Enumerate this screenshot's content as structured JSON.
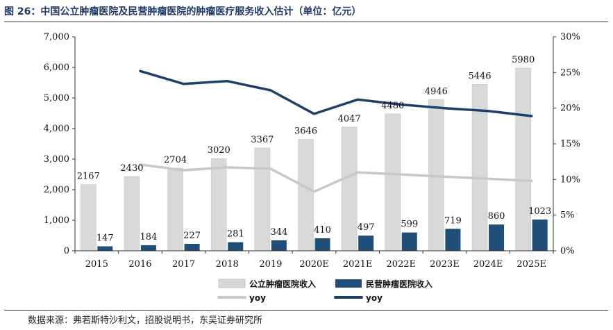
{
  "title": "图 26：中国公立肿瘤医院及民营肿瘤医院的肿瘤医疗服务收入估计（单位：亿元）",
  "source": "数据来源：弗若斯特沙利文，招股说明书，东吴证券研究所",
  "chart_data": {
    "type": "bar",
    "categories": [
      "2015",
      "2016",
      "2017",
      "2018",
      "2019",
      "2020E",
      "2021E",
      "2022E",
      "2023E",
      "2024E",
      "2025E"
    ],
    "series": [
      {
        "name": "公立肿瘤医院收入",
        "kind": "bar",
        "axis": "left",
        "color": "#d9d9d9",
        "values": [
          2167,
          2430,
          2704,
          3020,
          3367,
          3646,
          4047,
          4480,
          4946,
          5446,
          5980
        ]
      },
      {
        "name": "民营肿瘤医院收入",
        "kind": "bar",
        "axis": "left",
        "color": "#1f4e79",
        "values": [
          147,
          184,
          227,
          281,
          344,
          410,
          497,
          599,
          719,
          860,
          1023
        ]
      },
      {
        "name": "yoy",
        "kind": "line",
        "axis": "right",
        "color": "#c8c8c8",
        "values": [
          null,
          12.1,
          11.3,
          11.7,
          11.5,
          8.3,
          11.0,
          10.7,
          10.4,
          10.1,
          9.8
        ]
      },
      {
        "name": "yoy",
        "kind": "line",
        "axis": "right",
        "color": "#1f3f6b",
        "values": [
          null,
          25.2,
          23.4,
          23.8,
          22.5,
          19.2,
          21.2,
          20.5,
          20.0,
          19.6,
          18.9
        ]
      }
    ],
    "left_axis": {
      "range": [
        0,
        7000
      ],
      "ticks": [
        "0",
        "1,000",
        "2,000",
        "3,000",
        "4,000",
        "5,000",
        "6,000",
        "7,000"
      ]
    },
    "right_axis": {
      "range": [
        0,
        30
      ],
      "ticks": [
        "0%",
        "5%",
        "10%",
        "15%",
        "20%",
        "25%",
        "30%"
      ]
    },
    "grid": false,
    "legend_position": "bottom"
  }
}
